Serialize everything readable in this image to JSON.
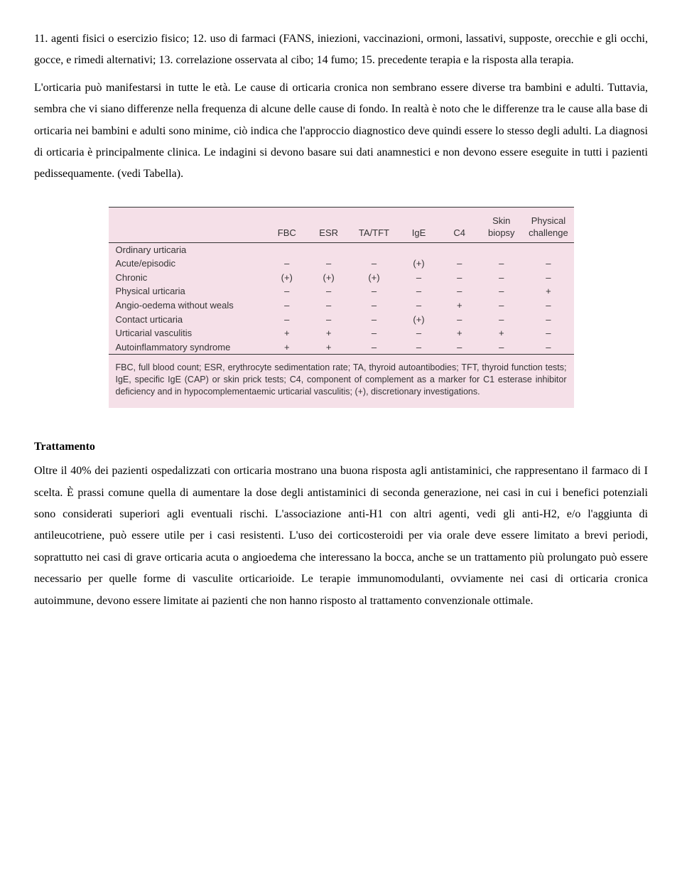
{
  "para1": "11. agenti fisici o esercizio fisico; 12. uso di farmaci (FANS, iniezioni, vaccinazioni, ormoni, lassativi, supposte, orecchie e gli occhi, gocce, e rimedi alternativi; 13. correlazione osservata al cibo; 14 fumo; 15. precedente terapia e la risposta alla terapia.",
  "para2": "L'orticaria può manifestarsi in tutte le età. Le cause di orticaria cronica non sembrano essere diverse tra bambini e adulti. Tuttavia, sembra che vi siano differenze nella frequenza di alcune delle cause di fondo. In realtà è noto che le differenze tra le cause alla base di orticaria nei bambini e adulti sono minime, ciò indica che l'approccio diagnostico deve quindi essere lo stesso degli adulti. La diagnosi di orticaria è principalmente clinica. Le indagini si devono basare sui dati anamnestici e non devono essere eseguite in tutti i pazienti pedissequamente. (vedi Tabella).",
  "table": {
    "columns": [
      "",
      "FBC",
      "ESR",
      "TA/TFT",
      "IgE",
      "C4",
      "Skin biopsy",
      "Physical challenge"
    ],
    "rows": [
      [
        "Ordinary urticaria",
        "",
        "",
        "",
        "",
        "",
        "",
        ""
      ],
      [
        "Acute/episodic",
        "–",
        "–",
        "–",
        "(+)",
        "–",
        "–",
        "–"
      ],
      [
        "Chronic",
        "(+)",
        "(+)",
        "(+)",
        "–",
        "–",
        "–",
        "–"
      ],
      [
        "Physical urticaria",
        "–",
        "–",
        "–",
        "–",
        "–",
        "–",
        "+"
      ],
      [
        "Angio-oedema without weals",
        "–",
        "–",
        "–",
        "–",
        "+",
        "–",
        "–"
      ],
      [
        "Contact urticaria",
        "–",
        "–",
        "–",
        "(+)",
        "–",
        "–",
        "–"
      ],
      [
        "Urticarial vasculitis",
        "+",
        "+",
        "–",
        "–",
        "+",
        "+",
        "–"
      ],
      [
        "Autoinflammatory syndrome",
        "+",
        "+",
        "–",
        "–",
        "–",
        "–",
        "–"
      ]
    ],
    "caption": "FBC, full blood count; ESR, erythrocyte sedimentation rate; TA, thyroid autoantibodies; TFT, thyroid function tests; IgE, specific IgE (CAP) or skin prick tests; C4, component of complement as a marker for C1 esterase inhibitor deficiency and in hypocomplementaemic urticarial vasculitis; (+), discretionary investigations.",
    "background_color": "#f5e0e8",
    "border_color": "#333333"
  },
  "heading": "Trattamento",
  "para3": "Oltre il 40% dei pazienti ospedalizzati con orticaria mostrano una buona risposta agli antistaminici, che rappresentano il farmaco di I scelta. È prassi comune quella di aumentare la dose degli antistaminici di seconda generazione, nei casi in cui i benefici potenziali sono considerati superiori agli eventuali rischi. L'associazione anti-H1 con altri agenti, vedi gli anti-H2, e/o l'aggiunta di antileucotriene, può essere utile per i casi resistenti. L'uso dei corticosteroidi per via orale deve essere limitato a brevi periodi, soprattutto nei casi di grave orticaria acuta o angioedema che interessano la bocca, anche se un trattamento più prolungato può essere necessario per quelle forme di vasculite orticarioide. Le terapie immunomodulanti, ovviamente nei casi di orticaria cronica autoimmune, devono essere limitate ai pazienti che non hanno risposto al trattamento convenzionale ottimale."
}
